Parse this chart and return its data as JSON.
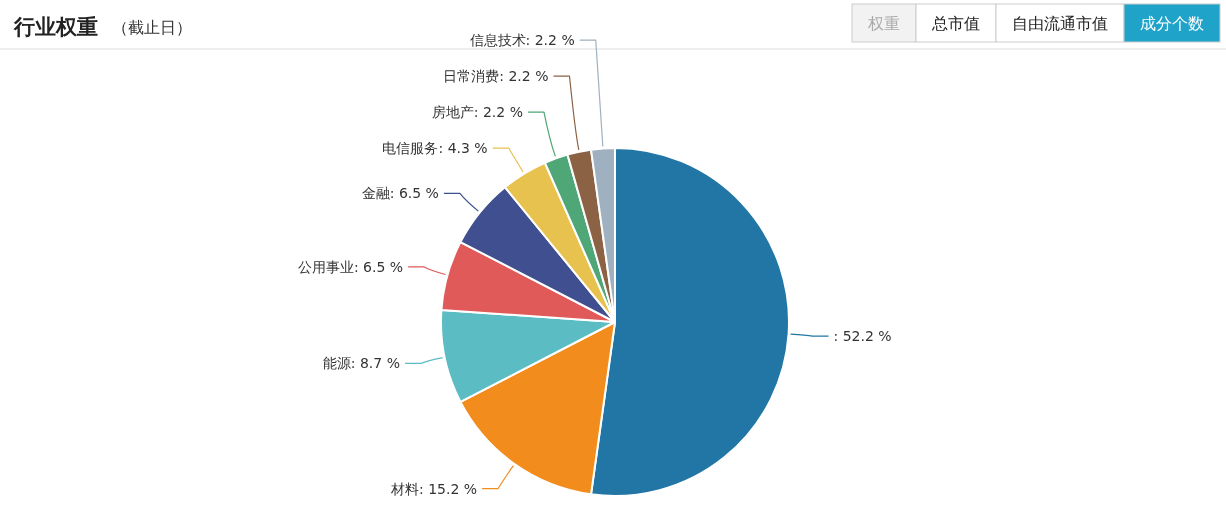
{
  "chart_data": {
    "type": "pie",
    "title": "行业权重",
    "subtitle": "（截止日）",
    "annotations": [
      "权重",
      "总市值",
      "自由流通市值",
      "成分个数"
    ],
    "categories": [
      null,
      "材料",
      "能源",
      "公用事业",
      "金融",
      "电信服务",
      "房地产",
      "日常消费",
      "信息技术"
    ],
    "values": [
      52.2,
      15.2,
      8.7,
      6.5,
      6.5,
      4.3,
      2.2,
      2.2,
      2.2
    ],
    "colors": [
      "#2176a6",
      "#f28c1c",
      "#5bbcc4",
      "#e05a5a",
      "#3f4f8f",
      "#e8c24f",
      "#4fa676",
      "#8c6244",
      "#9fb0c0"
    ],
    "value_labels": [
      ": 52.2 %",
      ": 15.2 %",
      ": 8.7 %",
      ": 6.5 %",
      ": 6.5 %",
      ": 4.3 %",
      ": 2.2 %",
      ": 2.2 %",
      ": 2.2 %"
    ],
    "legend": false
  }
}
